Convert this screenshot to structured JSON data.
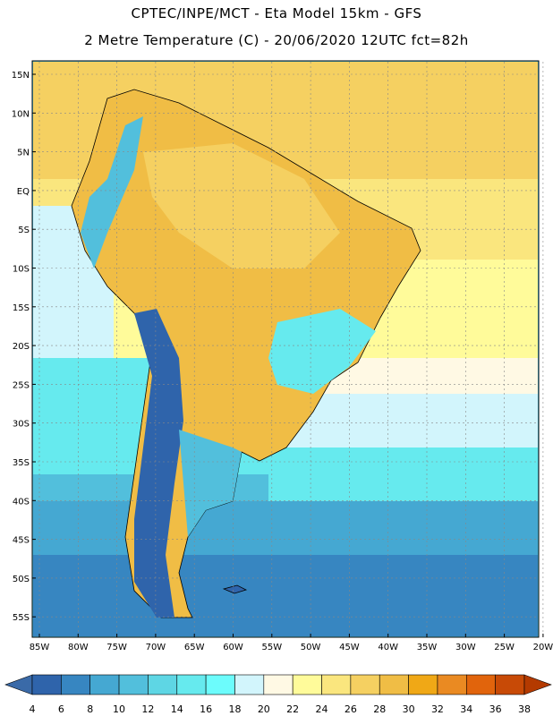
{
  "header": {
    "line1": "CPTEC/INPE/MCT -  Eta Model 15km - GFS",
    "line2": "2 Metre Temperature (C) - 20/06/2020 12UTC fct=82h"
  },
  "map": {
    "lat_labels": [
      "15N",
      "10N",
      "5N",
      "EQ",
      "5S",
      "10S",
      "15S",
      "20S",
      "25S",
      "30S",
      "35S",
      "40S",
      "45S",
      "50S",
      "55S"
    ],
    "lon_labels": [
      "85W",
      "80W",
      "75W",
      "70W",
      "65W",
      "60W",
      "55W",
      "50W",
      "45W",
      "40W",
      "35W",
      "30W",
      "25W",
      "20W"
    ]
  },
  "colorbar": {
    "ticks": [
      "4",
      "6",
      "8",
      "10",
      "12",
      "14",
      "16",
      "18",
      "20",
      "22",
      "24",
      "26",
      "28",
      "30",
      "32",
      "34",
      "36",
      "38"
    ],
    "colors": [
      "#3a6aa8",
      "#2f64ab",
      "#3786c1",
      "#45a8d2",
      "#52bfdc",
      "#5ed6e4",
      "#66eaee",
      "#6cfcfc",
      "#d2f5fc",
      "#fff9e4",
      "#fffb9a",
      "#fae67e",
      "#f5d061",
      "#f0bd45",
      "#f0a816",
      "#ea8a22",
      "#e1640c",
      "#c84a06",
      "#b43a00"
    ]
  }
}
